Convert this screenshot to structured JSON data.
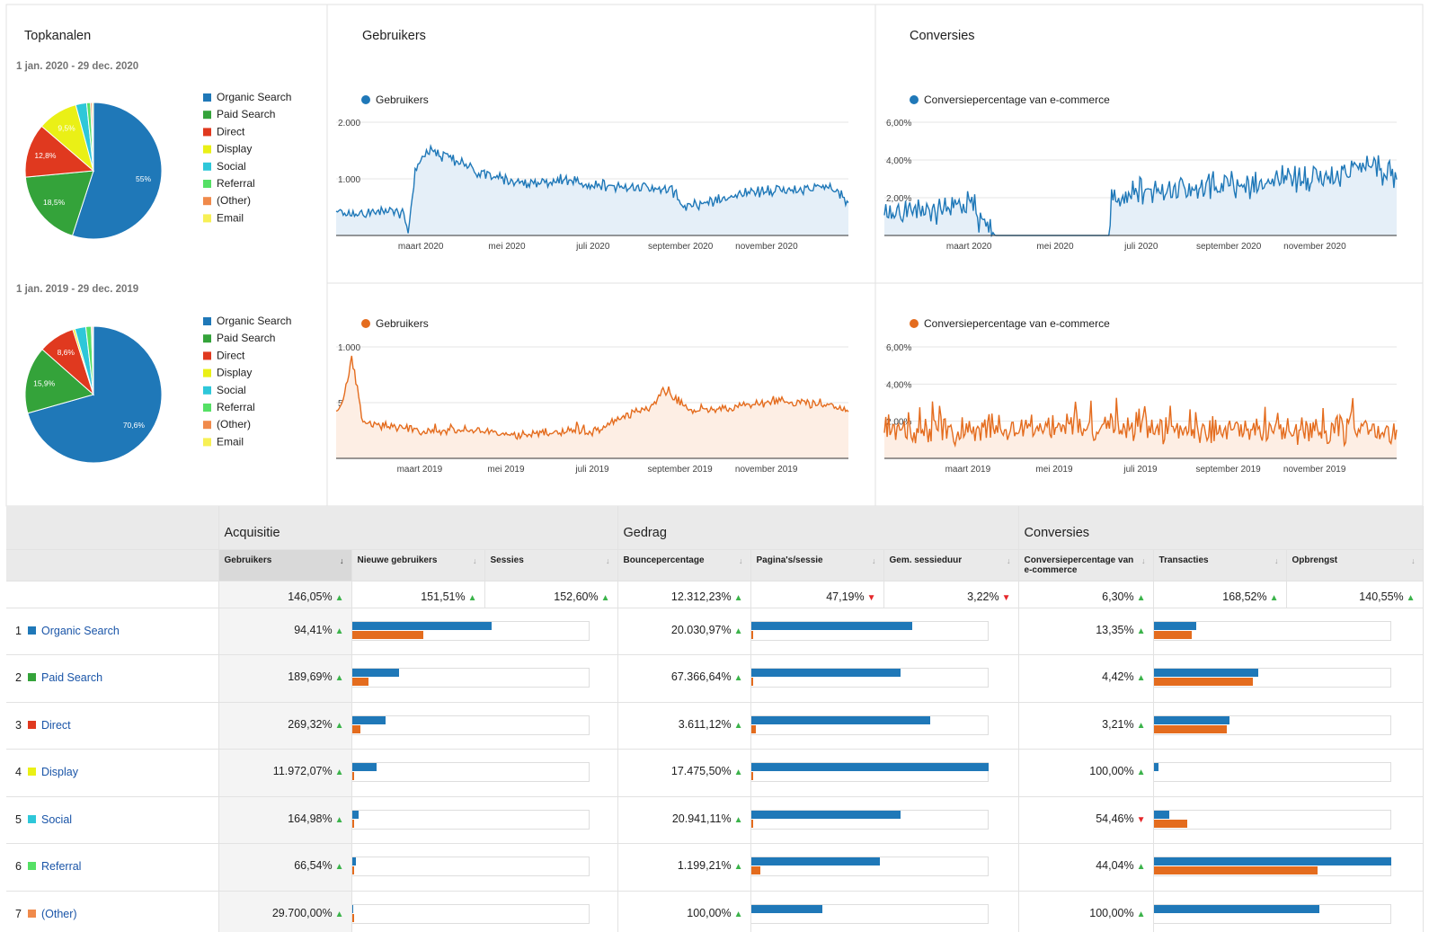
{
  "colors": {
    "organic": "#1f78b8",
    "paid": "#34a33a",
    "direct": "#e0391f",
    "display": "#eaf016",
    "social": "#2ec7d9",
    "referral": "#55e065",
    "other": "#f08a4b",
    "email": "#f7f055",
    "series_2020": "#1f78b8",
    "series_2019": "#e46c1e",
    "up_arrow": "#3bb34a",
    "down_arrow": "#e5272a"
  },
  "panels": {
    "topkanalen_title": "Topkanalen",
    "gebruikers_title": "Gebruikers",
    "conversies_title": "Conversies",
    "range_2020": "1 jan. 2020 - 29 dec. 2020",
    "range_2019": "1 jan. 2019 - 29 dec. 2019"
  },
  "legend": [
    "Organic Search",
    "Paid Search",
    "Direct",
    "Display",
    "Social",
    "Referral",
    "(Other)",
    "Email"
  ],
  "chart_data": [
    {
      "id": "pie-2020",
      "type": "pie",
      "title": "Topkanalen",
      "subtitle": "1 jan. 2020 - 29 dec. 2020",
      "labels": [
        "Organic Search",
        "Paid Search",
        "Direct",
        "Display",
        "Social",
        "Referral",
        "(Other)",
        "Email"
      ],
      "values": [
        55,
        18.5,
        12.8,
        9.5,
        2.6,
        0.9,
        0.4,
        0.3
      ],
      "value_labels": [
        "55%",
        "18,5%",
        "12,8%",
        "9,5%",
        "",
        "",
        "",
        ""
      ]
    },
    {
      "id": "pie-2019",
      "type": "pie",
      "subtitle": "1 jan. 2019 - 29 dec. 2019",
      "labels": [
        "Organic Search",
        "Paid Search",
        "Direct",
        "Display",
        "Social",
        "Referral",
        "(Other)",
        "Email"
      ],
      "values": [
        70.6,
        15.9,
        8.6,
        0.5,
        2.6,
        1.3,
        0.3,
        0.2
      ],
      "value_labels": [
        "70,6%",
        "15,9%",
        "8,6%",
        "",
        "",
        "",
        "",
        ""
      ]
    },
    {
      "id": "users-2020",
      "type": "area",
      "title": "Gebruikers",
      "series": [
        {
          "name": "Gebruikers",
          "x": [
            "2020-01-01",
            "2020-02-10",
            "2020-02-18",
            "2020-02-21",
            "2020-02-26",
            "2020-03-05",
            "2020-03-15",
            "2020-03-25",
            "2020-04-10",
            "2020-05-01",
            "2020-05-20",
            "2020-06-10",
            "2020-07-01",
            "2020-07-20",
            "2020-08-10",
            "2020-08-25",
            "2020-09-05",
            "2020-09-20",
            "2020-10-10",
            "2020-11-01",
            "2020-11-25",
            "2020-12-15",
            "2020-12-29"
          ],
          "values": [
            380,
            450,
            360,
            40,
            1100,
            1500,
            1400,
            1320,
            1120,
            980,
            900,
            980,
            880,
            860,
            850,
            820,
            480,
            600,
            700,
            800,
            820,
            880,
            620
          ]
        }
      ],
      "yticks": [
        "2.000",
        "1.000"
      ],
      "ylim": [
        0,
        2000
      ],
      "xticks": [
        "maart 2020",
        "mei 2020",
        "juli 2020",
        "september 2020",
        "november 2020"
      ]
    },
    {
      "id": "conv-2020",
      "type": "area",
      "title": "Conversies",
      "series": [
        {
          "name": "Conversiepercentage van e-commerce",
          "x": [
            "2020-01-01",
            "2020-01-20",
            "2020-02-10",
            "2020-02-25",
            "2020-03-05",
            "2020-03-10",
            "2020-03-15",
            "2020-03-20",
            "2020-06-08",
            "2020-06-10",
            "2020-06-20",
            "2020-07-15",
            "2020-08-15",
            "2020-09-15",
            "2020-10-15",
            "2020-11-15",
            "2020-12-10",
            "2020-12-29"
          ],
          "values": [
            1.3,
            1.5,
            1.2,
            1.6,
            1.5,
            0.3,
            0.2,
            0.0,
            0.0,
            1.7,
            2.2,
            2.4,
            2.6,
            2.7,
            3.0,
            3.2,
            3.9,
            3.1
          ]
        }
      ],
      "yticks": [
        "6,00%",
        "4,00%",
        "2,00%"
      ],
      "ylim": [
        0,
        6
      ],
      "xticks": [
        "maart 2020",
        "mei 2020",
        "juli 2020",
        "september 2020",
        "november 2020"
      ]
    },
    {
      "id": "users-2019",
      "type": "area",
      "series": [
        {
          "name": "Gebruikers",
          "x": [
            "2019-01-01",
            "2019-01-05",
            "2019-01-12",
            "2019-01-20",
            "2019-02-10",
            "2019-03-10",
            "2019-04-10",
            "2019-05-10",
            "2019-06-10",
            "2019-07-01",
            "2019-07-20",
            "2019-08-10",
            "2019-08-20",
            "2019-09-10",
            "2019-10-10",
            "2019-11-10",
            "2019-12-10",
            "2019-12-29"
          ],
          "values": [
            420,
            470,
            900,
            320,
            280,
            240,
            260,
            200,
            240,
            230,
            360,
            440,
            620,
            420,
            460,
            520,
            480,
            440
          ]
        }
      ],
      "yticks": [
        "1.000",
        "500"
      ],
      "ylim": [
        0,
        1000
      ],
      "xticks": [
        "maart 2019",
        "mei 2019",
        "juli 2019",
        "september 2019",
        "november 2019"
      ]
    },
    {
      "id": "conv-2019",
      "type": "area",
      "series": [
        {
          "name": "Conversiepercentage van e-commerce",
          "x": [
            "2019-01-01",
            "2019-02-15",
            "2019-04-01",
            "2019-05-15",
            "2019-07-01",
            "2019-08-15",
            "2019-10-01",
            "2019-11-15",
            "2019-12-29"
          ],
          "values": [
            1.6,
            1.5,
            1.6,
            1.7,
            1.6,
            1.5,
            1.6,
            1.5,
            1.5
          ]
        }
      ],
      "yticks": [
        "6,00%",
        "4,00%",
        "2,00%"
      ],
      "ylim": [
        0,
        6
      ],
      "xticks": [
        "maart 2019",
        "mei 2019",
        "juli 2019",
        "september 2019",
        "november 2019"
      ]
    }
  ],
  "table": {
    "groups": [
      "Acquisitie",
      "Gedrag",
      "Conversies"
    ],
    "columns": [
      "Gebruikers",
      "Nieuwe gebruikers",
      "Sessies",
      "Bouncepercentage",
      "Pagina's/sessie",
      "Gem. sessieduur",
      "Conversiepercentage van e-commerce",
      "Transacties",
      "Opbrengst"
    ],
    "totals": [
      {
        "value": "146,05%",
        "dir": "up"
      },
      {
        "value": "151,51%",
        "dir": "up"
      },
      {
        "value": "152,60%",
        "dir": "up"
      },
      {
        "value": "12.312,23%",
        "dir": "up"
      },
      {
        "value": "47,19%",
        "dir": "down"
      },
      {
        "value": "3,22%",
        "dir": "down"
      },
      {
        "value": "6,30%",
        "dir": "up"
      },
      {
        "value": "168,52%",
        "dir": "up"
      },
      {
        "value": "140,55%",
        "dir": "up"
      }
    ],
    "rows": [
      {
        "num": "1",
        "name": "Organic Search",
        "users": "94,41%",
        "users_dir": "up",
        "users_bars": [
          0.59,
          0.3
        ],
        "bounce": "20.030,97%",
        "bounce_dir": "up",
        "pps_bars": [
          0.68,
          0.005
        ],
        "conv": "13,35%",
        "conv_dir": "up",
        "trans_bars": [
          0.18,
          0.16
        ]
      },
      {
        "num": "2",
        "name": "Paid Search",
        "users": "189,69%",
        "users_dir": "up",
        "users_bars": [
          0.2,
          0.07
        ],
        "bounce": "67.366,64%",
        "bounce_dir": "up",
        "pps_bars": [
          0.63,
          0.005
        ],
        "conv": "4,42%",
        "conv_dir": "up",
        "trans_bars": [
          0.44,
          0.42
        ]
      },
      {
        "num": "3",
        "name": "Direct",
        "users": "269,32%",
        "users_dir": "up",
        "users_bars": [
          0.14,
          0.035
        ],
        "bounce": "3.611,12%",
        "bounce_dir": "up",
        "pps_bars": [
          0.755,
          0.02
        ],
        "conv": "3,21%",
        "conv_dir": "up",
        "trans_bars": [
          0.32,
          0.31
        ]
      },
      {
        "num": "4",
        "name": "Display",
        "users": "11.972,07%",
        "users_dir": "up",
        "users_bars": [
          0.105,
          0.004
        ],
        "bounce": "17.475,50%",
        "bounce_dir": "up",
        "pps_bars": [
          1.0,
          0.004
        ],
        "conv": "100,00%",
        "conv_dir": "up",
        "trans_bars": [
          0.02,
          0.0
        ]
      },
      {
        "num": "5",
        "name": "Social",
        "users": "164,98%",
        "users_dir": "up",
        "users_bars": [
          0.028,
          0.01
        ],
        "bounce": "20.941,11%",
        "bounce_dir": "up",
        "pps_bars": [
          0.63,
          0.005
        ],
        "conv": "54,46%",
        "conv_dir": "down",
        "trans_bars": [
          0.065,
          0.14
        ]
      },
      {
        "num": "6",
        "name": "Referral",
        "users": "66,54%",
        "users_dir": "up",
        "users_bars": [
          0.016,
          0.008
        ],
        "bounce": "1.199,21%",
        "bounce_dir": "up",
        "pps_bars": [
          0.545,
          0.04
        ],
        "conv": "44,04%",
        "conv_dir": "up",
        "trans_bars": [
          1.0,
          0.69
        ]
      },
      {
        "num": "7",
        "name": "(Other)",
        "users": "29.700,00%",
        "users_dir": "up",
        "users_bars": [
          0.004,
          0.004
        ],
        "bounce": "100,00%",
        "bounce_dir": "up",
        "pps_bars": [
          0.3,
          0.0
        ],
        "conv": "100,00%",
        "conv_dir": "up",
        "trans_bars": [
          0.7,
          0.0
        ]
      }
    ]
  }
}
